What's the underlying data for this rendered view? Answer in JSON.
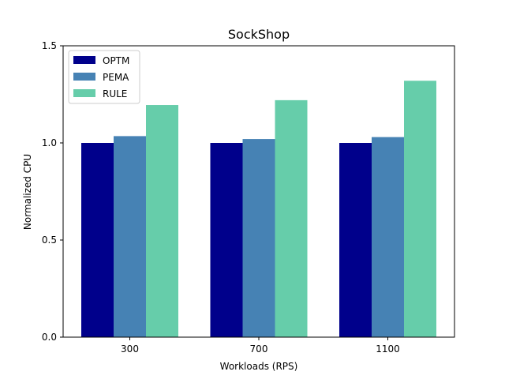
{
  "chart_data": {
    "type": "bar",
    "title": "SockShop",
    "xlabel": "Workloads (RPS)",
    "ylabel": "Normalized CPU",
    "categories": [
      "300",
      "700",
      "1100"
    ],
    "ylim": [
      0,
      1.5
    ],
    "yticks": [
      0.0,
      0.5,
      1.0,
      1.5
    ],
    "ytick_labels": [
      "0.0",
      "0.5",
      "1.0",
      "1.5"
    ],
    "grid": false,
    "legend_position": "top-left",
    "series": [
      {
        "name": "OPTM",
        "color": "#00008b",
        "values": [
          1.0,
          1.0,
          1.0
        ]
      },
      {
        "name": "PEMA",
        "color": "#4682b4",
        "values": [
          1.035,
          1.02,
          1.03
        ]
      },
      {
        "name": "RULE",
        "color": "#66cdaa",
        "values": [
          1.195,
          1.22,
          1.32
        ]
      }
    ]
  }
}
